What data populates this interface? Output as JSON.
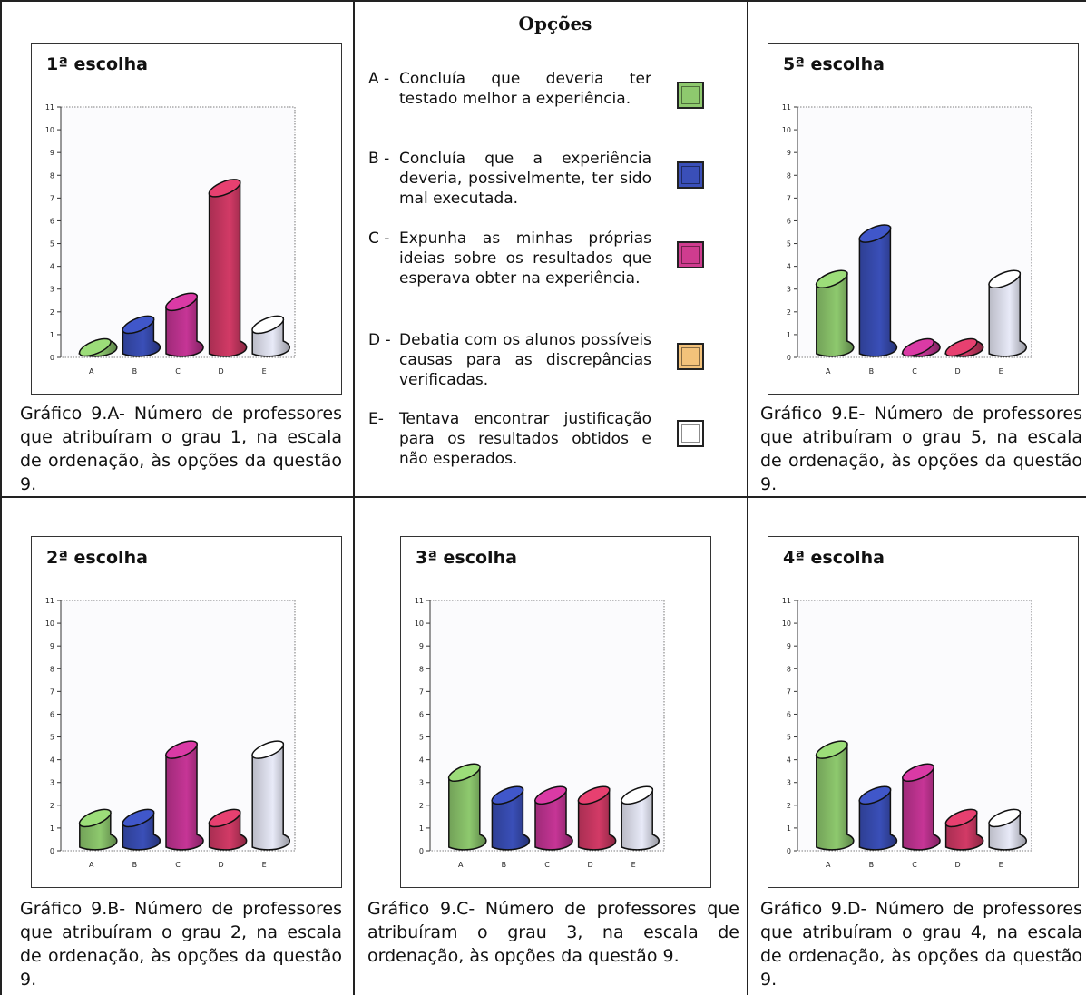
{
  "options": {
    "title": "Opções",
    "items": [
      {
        "letter": "A -",
        "text": "Concluía que deveria ter testado melhor a experiência.",
        "color": "#8ec96e"
      },
      {
        "letter": "B -",
        "text": "Concluía que a experiência deveria, possivelmente, ter sido mal executada.",
        "color": "#3a4fb8"
      },
      {
        "letter": "C -",
        "text": "Expunha as minhas próprias ideias sobre os resultados que esperava obter na experiência.",
        "color": "#cf3c8f"
      },
      {
        "letter": "D -",
        "text": "Debatia com os alunos possíveis causas para as discrepâncias verificadas.",
        "color": "#f3c27a"
      },
      {
        "letter": "E-",
        "text": "Tentava encontrar justificação para os resultados obtidos e não esperados.",
        "color": "#ffffff"
      }
    ]
  },
  "colors": {
    "A": "#8ec96e",
    "B": "#3a4fb8",
    "C": "#c63596",
    "D": "#d23a66",
    "E": "#e8eaf8"
  },
  "chart_data": [
    {
      "type": "bar",
      "title": "1ª escolha",
      "categories": [
        "A",
        "B",
        "C",
        "D",
        "E"
      ],
      "values": [
        0,
        1,
        2,
        7,
        1
      ],
      "ylim": [
        0,
        11
      ],
      "yticks": [
        0,
        1,
        2,
        3,
        4,
        5,
        6,
        7,
        8,
        9,
        10,
        11
      ],
      "caption": "Gráfico 9.A- Número de professores que atribuíram o grau 1, na escala de ordenação, às opções da questão 9."
    },
    {
      "type": "bar",
      "title": "5ª escolha",
      "categories": [
        "A",
        "B",
        "C",
        "D",
        "E"
      ],
      "values": [
        3,
        5,
        0,
        0,
        3
      ],
      "ylim": [
        0,
        11
      ],
      "yticks": [
        0,
        1,
        2,
        3,
        4,
        5,
        6,
        7,
        8,
        9,
        10,
        11
      ],
      "caption": "Gráfico 9.E- Número de professores que atribuíram o grau 5, na escala de ordenação, às opções da questão 9."
    },
    {
      "type": "bar",
      "title": "2ª escolha",
      "categories": [
        "A",
        "B",
        "C",
        "D",
        "E"
      ],
      "values": [
        1,
        1,
        4,
        1,
        4
      ],
      "ylim": [
        0,
        11
      ],
      "yticks": [
        0,
        1,
        2,
        3,
        4,
        5,
        6,
        7,
        8,
        9,
        10,
        11
      ],
      "caption": "Gráfico 9.B- Número de professores que atribuíram o grau 2, na escala de ordenação, às opções da questão 9."
    },
    {
      "type": "bar",
      "title": "3ª escolha",
      "categories": [
        "A",
        "B",
        "C",
        "D",
        "E"
      ],
      "values": [
        3,
        2,
        2,
        2,
        2
      ],
      "ylim": [
        0,
        11
      ],
      "yticks": [
        0,
        1,
        2,
        3,
        4,
        5,
        6,
        7,
        8,
        9,
        10,
        11
      ],
      "caption": "Gráfico 9.C- Número de professores que atribuíram o grau 3, na escala de ordenação, às opções da questão 9."
    },
    {
      "type": "bar",
      "title": "4ª escolha",
      "categories": [
        "A",
        "B",
        "C",
        "D",
        "E"
      ],
      "values": [
        4,
        2,
        3,
        1,
        1
      ],
      "ylim": [
        0,
        11
      ],
      "yticks": [
        0,
        1,
        2,
        3,
        4,
        5,
        6,
        7,
        8,
        9,
        10,
        11
      ],
      "caption": "Gráfico 9.D- Número de professores que atribuíram o grau 4, na escala de ordenação, às opções da questão 9."
    }
  ]
}
